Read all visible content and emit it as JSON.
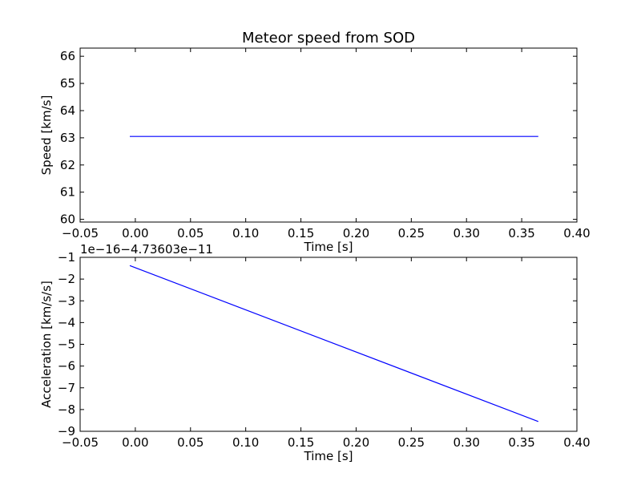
{
  "chart_data": [
    {
      "type": "line",
      "title": "Meteor speed from  SOD",
      "xlabel": "Time [s]",
      "ylabel": "Speed [km/s]",
      "xlim": [
        -0.05,
        0.4
      ],
      "ylim": [
        59.9,
        66.3
      ],
      "xticks": [
        -0.05,
        0.0,
        0.05,
        0.1,
        0.15,
        0.2,
        0.25,
        0.3,
        0.35,
        0.4
      ],
      "xtick_labels": [
        "−0.05",
        "0.00",
        "0.05",
        "0.10",
        "0.15",
        "0.20",
        "0.25",
        "0.30",
        "0.35",
        "0.40"
      ],
      "yticks": [
        60,
        61,
        62,
        63,
        64,
        65,
        66
      ],
      "ytick_labels": [
        "60",
        "61",
        "62",
        "63",
        "64",
        "65",
        "66"
      ],
      "offset_text": "",
      "grid": false,
      "series": [
        {
          "x": [
            -0.005,
            0.365
          ],
          "y": [
            63.05,
            63.05
          ]
        }
      ],
      "color": "#0000ff"
    },
    {
      "type": "line",
      "title": "",
      "xlabel": "Time [s]",
      "ylabel": "Acceleration [km/s/s]",
      "xlim": [
        -0.05,
        0.4
      ],
      "ylim": [
        -9,
        -1
      ],
      "xticks": [
        -0.05,
        0.0,
        0.05,
        0.1,
        0.15,
        0.2,
        0.25,
        0.3,
        0.35,
        0.4
      ],
      "xtick_labels": [
        "−0.05",
        "0.00",
        "0.05",
        "0.10",
        "0.15",
        "0.20",
        "0.25",
        "0.30",
        "0.35",
        "0.40"
      ],
      "yticks": [
        -9,
        -8,
        -7,
        -6,
        -5,
        -4,
        -3,
        -2,
        -1
      ],
      "ytick_labels": [
        "−9",
        "−8",
        "−7",
        "−6",
        "−5",
        "−4",
        "−3",
        "−2",
        "−1"
      ],
      "offset_text": "1e−16−4.73603e−11",
      "grid": false,
      "series": [
        {
          "x": [
            -0.005,
            0.365
          ],
          "y": [
            -1.38,
            -8.55
          ]
        }
      ],
      "color": "#0000ff"
    }
  ]
}
